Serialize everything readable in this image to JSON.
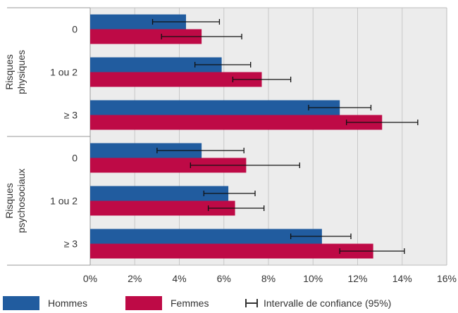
{
  "chart_data": {
    "type": "bar",
    "orientation": "horizontal",
    "groups": [
      {
        "label_lines": [
          "Risques",
          "physiques"
        ],
        "categories": [
          "0",
          "1 ou 2",
          "≥ 3"
        ]
      },
      {
        "label_lines": [
          "Risques",
          "psychosociaux"
        ],
        "categories": [
          "0",
          "1 ou 2",
          "≥ 3"
        ]
      }
    ],
    "series": [
      {
        "name": "Hommes",
        "color": "#215c9f",
        "values": [
          4.3,
          5.9,
          11.2,
          5.0,
          6.2,
          10.4
        ],
        "ci_low": [
          2.8,
          4.7,
          9.8,
          3.0,
          5.1,
          9.0
        ],
        "ci_high": [
          5.8,
          7.2,
          12.6,
          6.9,
          7.4,
          11.7
        ]
      },
      {
        "name": "Femmes",
        "color": "#be0a46",
        "values": [
          5.0,
          7.7,
          13.1,
          7.0,
          6.5,
          12.7
        ],
        "ci_low": [
          3.2,
          6.4,
          11.5,
          4.5,
          5.3,
          11.2
        ],
        "ci_high": [
          6.8,
          9.0,
          14.7,
          9.4,
          7.8,
          14.1
        ]
      }
    ],
    "xlim": [
      0,
      16
    ],
    "x_ticks": [
      "0%",
      "2%",
      "4%",
      "6%",
      "8%",
      "10%",
      "12%",
      "14%",
      "16%"
    ],
    "grid": true,
    "legend_position": "bottom",
    "ci_legend_label": "Intervalle de confiance (95%)"
  }
}
